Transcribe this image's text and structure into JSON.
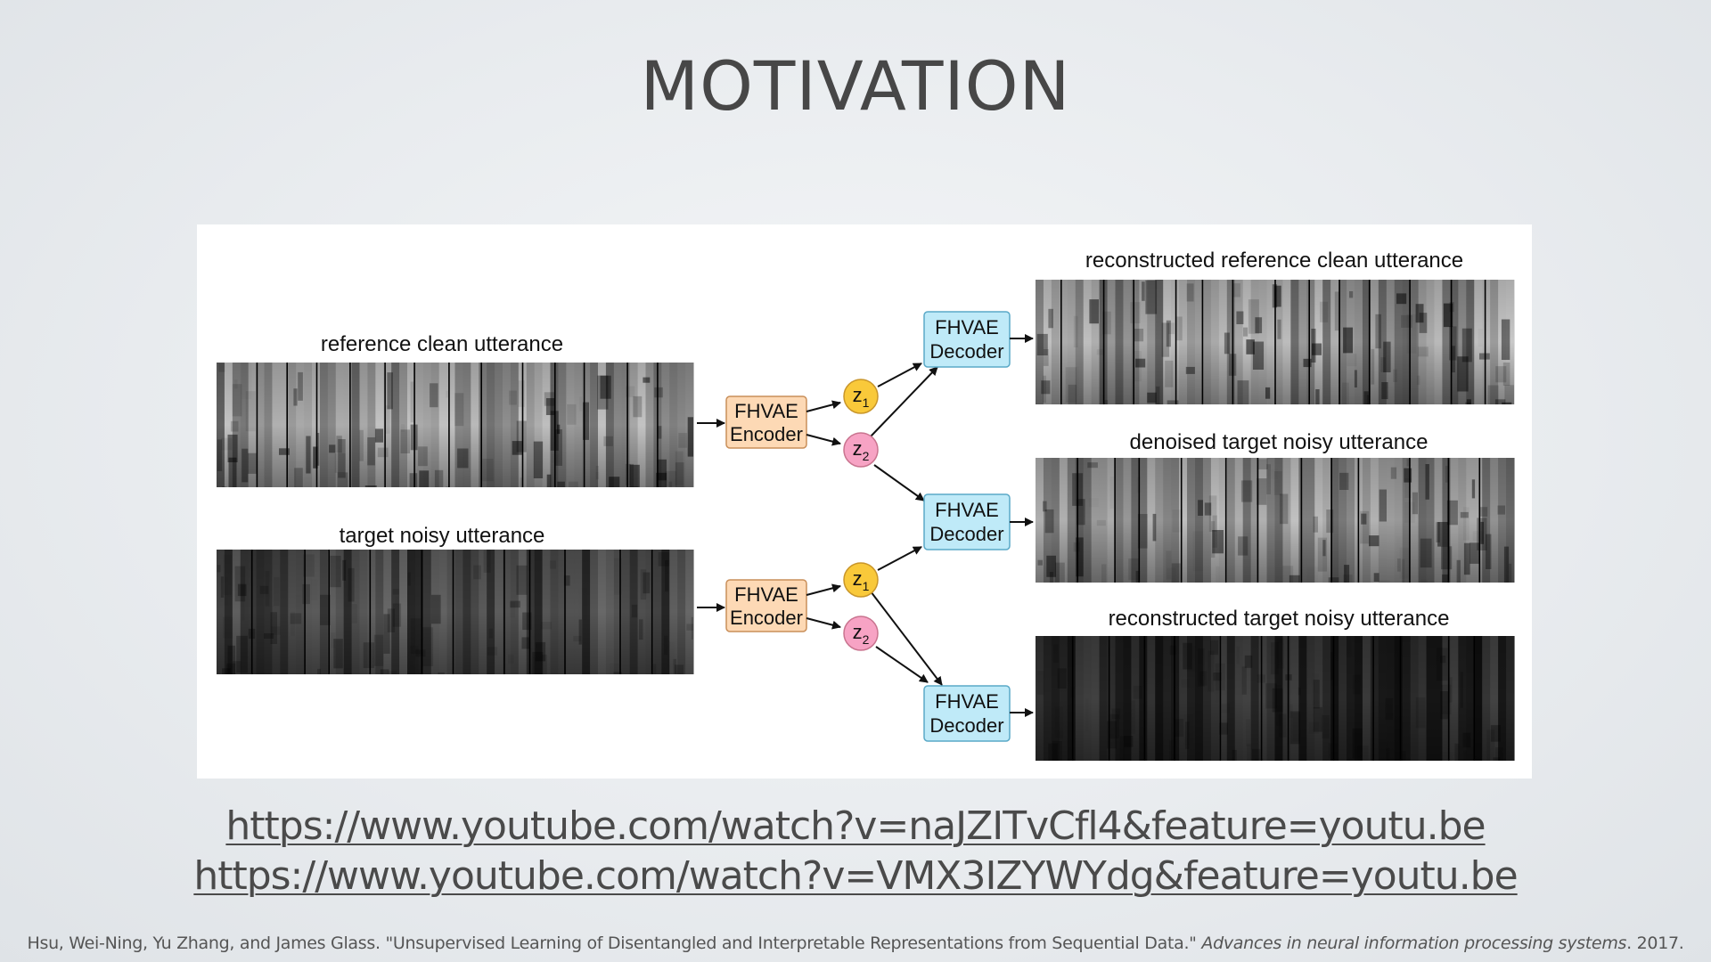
{
  "slide": {
    "title": "MOTIVATION"
  },
  "diagram": {
    "inputs": [
      {
        "id": "ref",
        "label": "reference clean utterance",
        "style": "clean"
      },
      {
        "id": "tgt",
        "label": "target noisy utterance",
        "style": "noisy"
      }
    ],
    "encoders": [
      {
        "line1": "FHVAE",
        "line2": "Encoder"
      },
      {
        "line1": "FHVAE",
        "line2": "Encoder"
      }
    ],
    "latents": [
      {
        "symbol": "z",
        "subscript": "1",
        "color": "#f9c93a"
      },
      {
        "symbol": "z",
        "subscript": "2",
        "color": "#f7a3c4"
      },
      {
        "symbol": "z",
        "subscript": "1",
        "color": "#f9c93a"
      },
      {
        "symbol": "z",
        "subscript": "2",
        "color": "#f7a3c4"
      }
    ],
    "decoders": [
      {
        "line1": "FHVAE",
        "line2": "Decoder"
      },
      {
        "line1": "FHVAE",
        "line2": "Decoder"
      },
      {
        "line1": "FHVAE",
        "line2": "Decoder"
      }
    ],
    "outputs": [
      {
        "label": "reconstructed reference clean utterance",
        "style": "clean"
      },
      {
        "label": "denoised target noisy utterance",
        "style": "denoised"
      },
      {
        "label": "reconstructed target noisy utterance",
        "style": "dark"
      }
    ],
    "colors": {
      "encoder_fill": "#fdd9b5",
      "encoder_stroke": "#c98f5a",
      "decoder_fill": "#bfeaf8",
      "decoder_stroke": "#5aa9c7",
      "arrow": "#111111"
    }
  },
  "links": [
    "https://www.youtube.com/watch?v=naJZITvCfl4&feature=youtu.be",
    "https://www.youtube.com/watch?v=VMX3IZYWYdg&feature=youtu.be"
  ],
  "citation": {
    "text": "Hsu, Wei-Ning, Yu Zhang, and James Glass. \"Unsupervised Learning of Disentangled and Interpretable Representations from Sequential Data.\"",
    "venue": "Advances in neural information processing systems",
    "year": ". 2017."
  }
}
